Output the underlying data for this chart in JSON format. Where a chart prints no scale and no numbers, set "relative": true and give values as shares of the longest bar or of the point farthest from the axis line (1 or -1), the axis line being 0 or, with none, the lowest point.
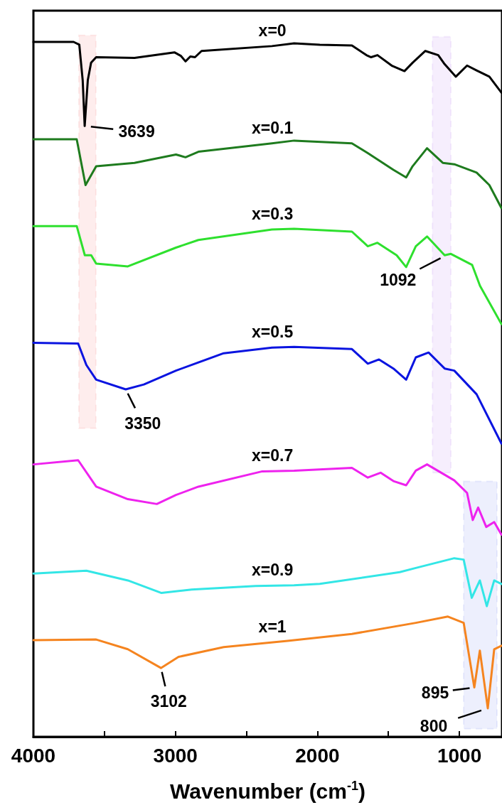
{
  "chart_data": {
    "type": "line",
    "relative": true,
    "xlabel": "Wavenumber (cm$^{-1}$)",
    "xlim": [
      4000,
      700
    ],
    "xticks": [
      4000,
      {
        "value": 3500,
        "label": null
      },
      3000,
      {
        "value": 2500,
        "label": null
      },
      2000,
      {
        "value": 1500,
        "label": null
      },
      1000
    ],
    "series": [
      {
        "name": "x=0",
        "color": "#000000",
        "x": [
          4000,
          3717,
          3677,
          3653,
          3639,
          3617,
          3594,
          3558,
          3288,
          3007,
          2962,
          2929,
          2895,
          2862,
          2816,
          2320,
          2164,
          1983,
          1757,
          1655,
          1622,
          1577,
          1477,
          1387,
          1330,
          1240,
          1149,
          1104,
          1025,
          946,
          879,
          789,
          704
        ],
        "values": [
          1.0,
          1.0,
          0.996,
          0.945,
          0.879,
          0.945,
          0.97,
          0.978,
          0.977,
          0.985,
          0.98,
          0.972,
          0.979,
          0.978,
          0.987,
          0.994,
          0.998,
          0.996,
          0.995,
          0.981,
          0.978,
          0.981,
          0.966,
          0.958,
          0.97,
          0.987,
          0.981,
          0.968,
          0.95,
          0.966,
          0.959,
          0.95,
          0.927
        ]
      },
      {
        "name": "x=0.1",
        "color": "#1e7b1e",
        "x": [
          4000,
          3695,
          3633,
          3558,
          3288,
          2996,
          2929,
          2838,
          2320,
          2164,
          1757,
          1645,
          1465,
          1375,
          1330,
          1228,
          1117,
          1036,
          879,
          789,
          704
        ],
        "values": [
          0.86,
          0.86,
          0.794,
          0.821,
          0.826,
          0.838,
          0.834,
          0.842,
          0.854,
          0.858,
          0.854,
          0.84,
          0.816,
          0.805,
          0.821,
          0.847,
          0.826,
          0.824,
          0.812,
          0.794,
          0.761
        ]
      },
      {
        "name": "x=0.3",
        "color": "#2ee02e",
        "x": [
          4000,
          3695,
          3638,
          3593,
          3558,
          3335,
          2996,
          2838,
          2320,
          2164,
          1757,
          1645,
          1577,
          1442,
          1375,
          1307,
          1228,
          1104,
          1060,
          910,
          855,
          704
        ],
        "values": [
          0.735,
          0.735,
          0.693,
          0.693,
          0.681,
          0.677,
          0.704,
          0.715,
          0.73,
          0.731,
          0.727,
          0.706,
          0.711,
          0.693,
          0.676,
          0.706,
          0.72,
          0.693,
          0.695,
          0.679,
          0.649,
          0.594
        ]
      },
      {
        "name": "x=0.5",
        "color": "#0a14e0",
        "x": [
          4000,
          3685,
          3627,
          3558,
          3350,
          3222,
          2996,
          2660,
          2320,
          2164,
          1757,
          1645,
          1566,
          1465,
          1375,
          1307,
          1217,
          1104,
          1036,
          879,
          704
        ],
        "values": [
          0.567,
          0.566,
          0.535,
          0.514,
          0.5,
          0.507,
          0.527,
          0.552,
          0.56,
          0.561,
          0.558,
          0.537,
          0.543,
          0.53,
          0.514,
          0.546,
          0.553,
          0.53,
          0.527,
          0.493,
          0.422
        ]
      },
      {
        "name": "x=0.7",
        "color": "#ee22ee",
        "x": [
          4000,
          3685,
          3558,
          3335,
          3131,
          2996,
          2838,
          2388,
          2164,
          1757,
          1645,
          1555,
          1465,
          1375,
          1307,
          1228,
          1036,
          946,
          906,
          868,
          811,
          755,
          704
        ],
        "values": [
          0.392,
          0.398,
          0.36,
          0.342,
          0.335,
          0.348,
          0.36,
          0.382,
          0.383,
          0.387,
          0.373,
          0.38,
          0.368,
          0.362,
          0.383,
          0.392,
          0.369,
          0.351,
          0.312,
          0.33,
          0.302,
          0.309,
          0.291
        ]
      },
      {
        "name": "x=0.9",
        "color": "#33e6e6",
        "x": [
          4000,
          3627,
          3335,
          3098,
          2885,
          2435,
          2164,
          1983,
          1420,
          1307,
          1036,
          970,
          913,
          856,
          807,
          755,
          704
        ],
        "values": [
          0.235,
          0.239,
          0.225,
          0.207,
          0.212,
          0.217,
          0.218,
          0.22,
          0.237,
          0.243,
          0.257,
          0.255,
          0.2,
          0.225,
          0.188,
          0.225,
          0.22
        ]
      },
      {
        "name": "x=1",
        "color": "#f5841f",
        "x": [
          4000,
          3558,
          3335,
          3102,
          2978,
          2660,
          2210,
          1757,
          1307,
          1081,
          970,
          895,
          856,
          800,
          755,
          704
        ],
        "values": [
          0.139,
          0.14,
          0.126,
          0.099,
          0.115,
          0.129,
          0.138,
          0.148,
          0.164,
          0.173,
          0.164,
          0.071,
          0.124,
          0.041,
          0.126,
          0.131
        ]
      }
    ],
    "annotations": [
      {
        "text": "3639",
        "x": 3639,
        "y": 0.879
      },
      {
        "text": "3350",
        "x": 3350,
        "y": 0.5
      },
      {
        "text": "1092",
        "x": 1092,
        "y": 0.693
      },
      {
        "text": "3102",
        "x": 3102,
        "y": 0.099
      },
      {
        "text": "895",
        "x": 895,
        "y": 0.071
      },
      {
        "text": "800",
        "x": 800,
        "y": 0.041
      }
    ],
    "bands": [
      {
        "axis": "x",
        "from": 3680,
        "to": 3560,
        "color": "#ee1c1c"
      },
      {
        "axis": "x",
        "from": 1190,
        "to": 1060,
        "color": "#8a2be2"
      },
      {
        "axis": "x",
        "from": 970,
        "to": 735,
        "color": "#1a2ee0"
      }
    ]
  }
}
